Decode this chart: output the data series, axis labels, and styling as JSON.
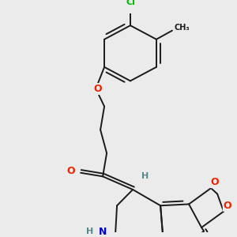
{
  "bg_color": "#ebebeb",
  "bond_color": "#1a1a1a",
  "bond_width": 1.4,
  "atom_colors": {
    "Cl": "#00bb00",
    "O": "#ee2200",
    "N": "#0000cc",
    "H": "#558888",
    "C": "#1a1a1a"
  },
  "figsize": [
    3.0,
    3.0
  ],
  "dpi": 100,
  "xlim": [
    0,
    300
  ],
  "ylim": [
    0,
    300
  ]
}
